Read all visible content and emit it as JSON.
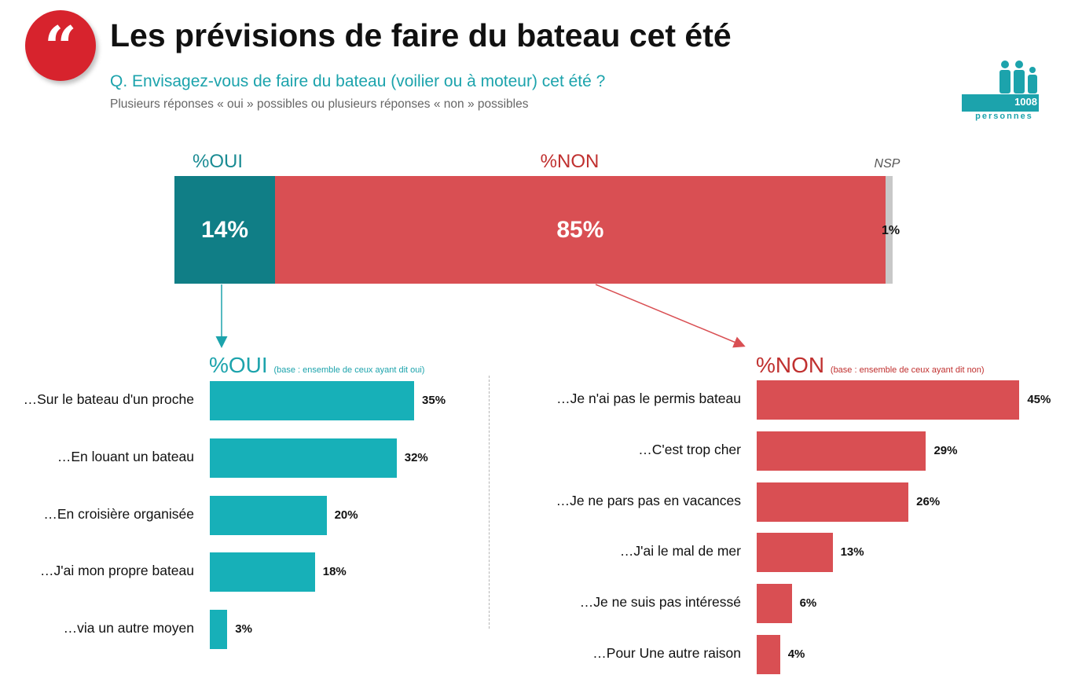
{
  "header": {
    "quote_glyph": "“",
    "title": "Les prévisions de faire du bateau cet été",
    "question": "Q. Envisagez-vous de faire du bateau (voilier ou à moteur) cet été ?",
    "note": "Plusieurs réponses « oui » possibles ou plusieurs réponses « non » possibles",
    "sample_count": "1008",
    "sample_label": "personnes",
    "icon": "people-group-icon"
  },
  "colors": {
    "red_badge": "#d7232d",
    "teal_dark": "#107e86",
    "teal": "#17b0b8",
    "red": "#d94f53",
    "grey": "#c8c8c8"
  },
  "chart_data": [
    {
      "type": "bar",
      "orientation": "horizontal-stacked",
      "categories": [
        "%OUI",
        "%NON",
        "NSP"
      ],
      "values": [
        14,
        85,
        1
      ],
      "value_labels": [
        "14%",
        "85%",
        "1%"
      ],
      "colors": [
        "#107e86",
        "#d94f53",
        "#c8c8c8"
      ]
    },
    {
      "type": "bar",
      "orientation": "horizontal",
      "title": "%OUI",
      "subtitle": "(base : ensemble de ceux ayant dit oui)",
      "categories": [
        "…Sur le bateau d'un proche",
        "…En louant un bateau",
        "…En croisière organisée",
        "…J'ai mon propre bateau",
        "…via un autre moyen"
      ],
      "values": [
        35,
        32,
        20,
        18,
        3
      ],
      "value_labels": [
        "35%",
        "32%",
        "20%",
        "18%",
        "3%"
      ],
      "color": "#17b0b8"
    },
    {
      "type": "bar",
      "orientation": "horizontal",
      "title": "%NON",
      "subtitle": "(base : ensemble de ceux ayant dit non)",
      "categories": [
        "…Je n'ai pas le permis bateau",
        "…C'est trop cher",
        "…Je ne pars pas en vacances",
        "…J'ai le mal de mer",
        "…Je ne suis pas intéressé",
        "…Pour Une autre raison"
      ],
      "values": [
        45,
        29,
        26,
        13,
        6,
        4
      ],
      "value_labels": [
        "45%",
        "29%",
        "26%",
        "13%",
        "6%",
        "4%"
      ],
      "color": "#d94f53"
    }
  ]
}
